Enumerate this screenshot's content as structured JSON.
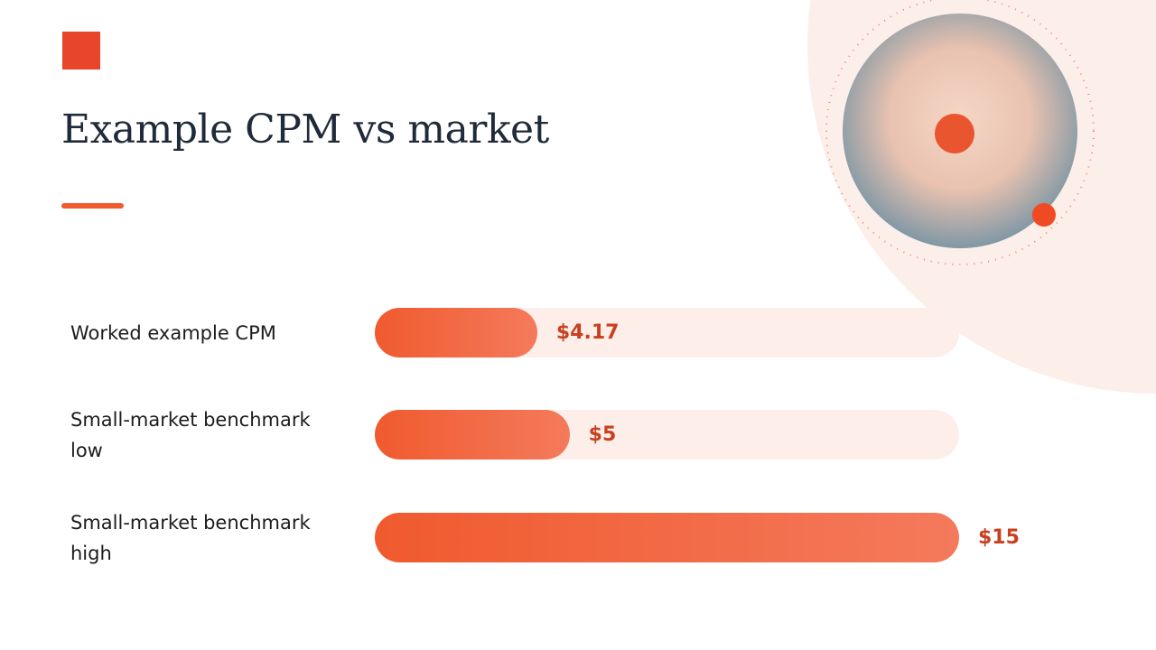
{
  "chart_data": {
    "type": "bar",
    "orientation": "horizontal",
    "title": "Example CPM vs market",
    "categories": [
      "Worked example CPM",
      "Small-market benchmark low",
      "Small-market benchmark high"
    ],
    "values": [
      4.17,
      5,
      15
    ],
    "value_labels": [
      "$4.17",
      "$5",
      "$15"
    ],
    "color": "#f05a2e",
    "xlim": [
      0,
      15
    ]
  }
}
